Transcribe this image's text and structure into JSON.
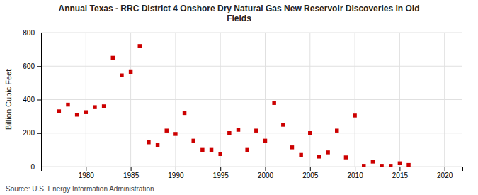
{
  "chart_data": {
    "type": "scatter",
    "title": "Annual Texas - RRC District 4 Onshore Dry Natural Gas New Reservoir Discoveries in Old\nFields",
    "y_label": "Billion Cubic Feet",
    "source": "Source: U.S. Energy Information Administration",
    "color": "#cc0000",
    "marker": "square",
    "grid": true,
    "xlim": [
      1975,
      2022
    ],
    "ylim": [
      0,
      800
    ],
    "xticks": [
      1980,
      1985,
      1990,
      1995,
      2000,
      2005,
      2010,
      2015,
      2020
    ],
    "yticks": [
      0,
      200,
      400,
      600,
      800
    ],
    "x": [
      1977,
      1978,
      1979,
      1980,
      1981,
      1982,
      1983,
      1984,
      1985,
      1986,
      1987,
      1988,
      1989,
      1990,
      1991,
      1992,
      1993,
      1994,
      1995,
      1996,
      1997,
      1998,
      1999,
      2000,
      2001,
      2002,
      2003,
      2004,
      2005,
      2006,
      2007,
      2008,
      2009,
      2010,
      2011,
      2012,
      2013,
      2014,
      2015,
      2016
    ],
    "values": [
      330,
      370,
      310,
      325,
      355,
      360,
      650,
      545,
      565,
      720,
      145,
      130,
      215,
      195,
      320,
      155,
      100,
      100,
      75,
      200,
      220,
      100,
      215,
      155,
      380,
      250,
      115,
      70,
      200,
      60,
      85,
      215,
      55,
      305,
      5,
      30,
      5,
      5,
      20,
      10
    ]
  }
}
